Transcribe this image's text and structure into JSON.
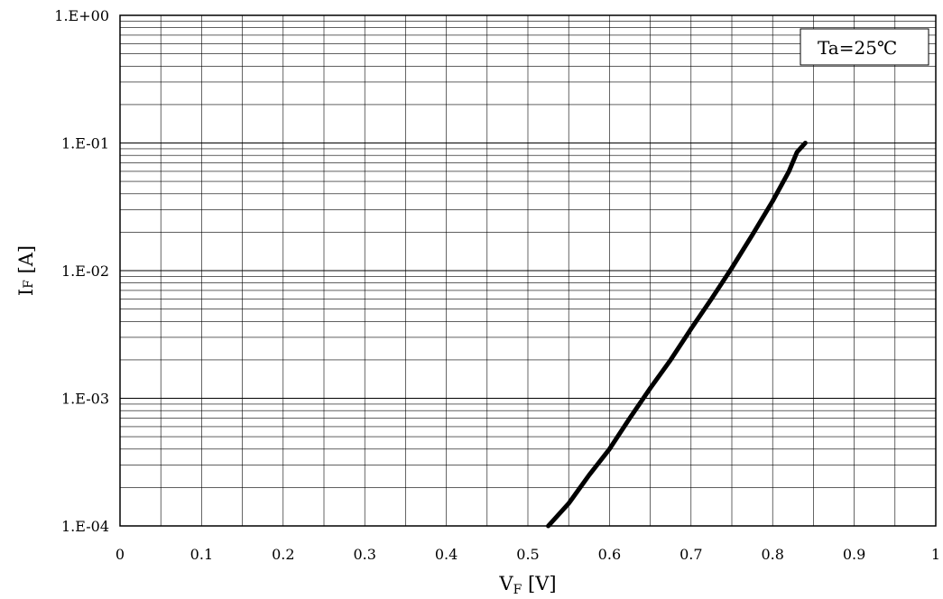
{
  "chart_data": {
    "type": "line",
    "title": "",
    "xlabel": "V",
    "xlabel_sub": "F",
    "xlabel_unit": "[V]",
    "ylabel": "I",
    "ylabel_sub": "F",
    "ylabel_unit": "[A]",
    "annotation": "Ta=25℃",
    "xlim": [
      0,
      1
    ],
    "ylim": [
      0.0001,
      1
    ],
    "yscale": "log",
    "grid": true,
    "x_tick_labels": [
      "0",
      "0.1",
      "0.2",
      "0.3",
      "0.4",
      "0.5",
      "0.6",
      "0.7",
      "0.8",
      "0.9",
      "1"
    ],
    "y_tick_labels": [
      "1.E-04",
      "1.E-03",
      "1.E-02",
      "1.E-01",
      "1.E+00"
    ],
    "series": [
      {
        "color": "#000000",
        "x": [
          0.525,
          0.55,
          0.575,
          0.6,
          0.625,
          0.65,
          0.675,
          0.7,
          0.725,
          0.75,
          0.775,
          0.8,
          0.82,
          0.83,
          0.84
        ],
        "y": [
          0.0001,
          0.00015,
          0.00025,
          0.0004,
          0.0007,
          0.0012,
          0.002,
          0.0035,
          0.006,
          0.0105,
          0.019,
          0.035,
          0.06,
          0.085,
          0.1
        ]
      }
    ]
  }
}
